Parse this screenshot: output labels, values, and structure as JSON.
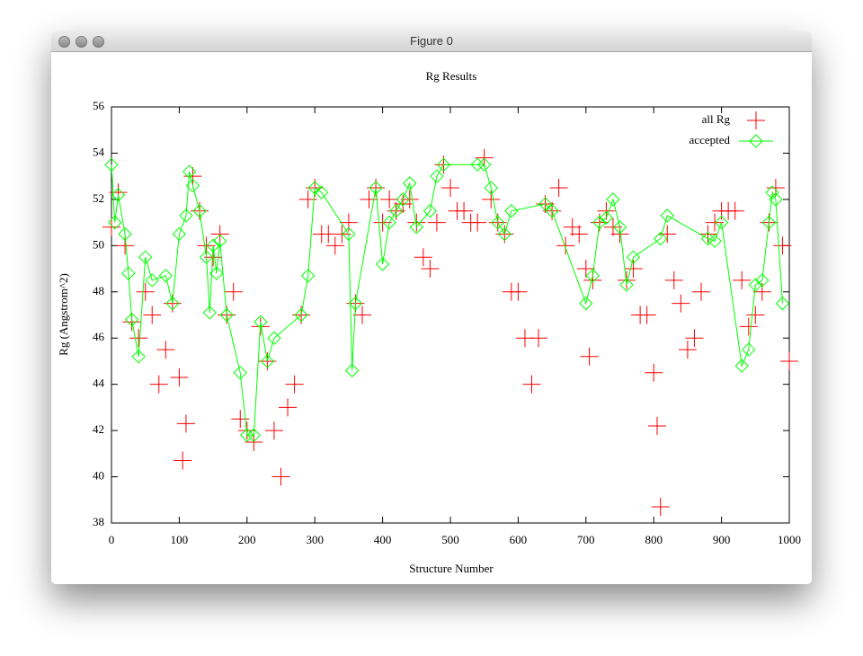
{
  "window": {
    "title": "Figure 0"
  },
  "chart_data": {
    "type": "scatter",
    "title": "Rg Results",
    "x_label": "Structure Number",
    "y_label": "Rg (Angstrom^2)",
    "xlim": [
      0,
      1000
    ],
    "ylim": [
      38,
      56
    ],
    "xticks": [
      0,
      100,
      200,
      300,
      400,
      500,
      600,
      700,
      800,
      900,
      1000
    ],
    "yticks": [
      38,
      40,
      42,
      44,
      46,
      48,
      50,
      52,
      54,
      56
    ],
    "legend": "upper right",
    "series": [
      {
        "name": "all Rg",
        "color": "#ff0000",
        "marker": "plus",
        "line": false,
        "x": [
          0,
          10,
          20,
          30,
          40,
          50,
          60,
          70,
          80,
          90,
          100,
          105,
          110,
          120,
          130,
          140,
          150,
          160,
          170,
          180,
          190,
          200,
          210,
          220,
          230,
          240,
          250,
          260,
          270,
          280,
          290,
          300,
          310,
          320,
          330,
          340,
          350,
          360,
          370,
          380,
          390,
          400,
          410,
          420,
          430,
          440,
          450,
          460,
          470,
          480,
          490,
          500,
          510,
          520,
          530,
          540,
          550,
          560,
          570,
          580,
          590,
          600,
          610,
          620,
          630,
          640,
          650,
          660,
          670,
          680,
          690,
          700,
          705,
          710,
          720,
          730,
          740,
          750,
          760,
          770,
          780,
          790,
          800,
          805,
          810,
          820,
          830,
          840,
          850,
          860,
          870,
          880,
          890,
          900,
          910,
          920,
          930,
          940,
          950,
          960,
          970,
          980,
          990,
          1000
        ],
        "values": [
          50.8,
          52.3,
          50,
          46.7,
          46,
          48,
          47,
          44,
          45.5,
          47.5,
          44.3,
          40.7,
          42.3,
          53,
          51.5,
          50,
          49.5,
          50.5,
          47,
          48,
          42.5,
          42,
          41.5,
          46.5,
          45,
          42,
          40,
          43,
          44,
          47,
          52,
          52.5,
          50.5,
          50.5,
          50,
          50.5,
          51,
          47.5,
          47,
          52,
          52.5,
          51,
          52,
          51.5,
          51.8,
          52,
          51,
          49.5,
          49,
          51,
          53.5,
          52.5,
          51.5,
          51.5,
          51,
          51,
          53.8,
          52,
          51,
          50.5,
          48,
          48,
          46,
          44,
          46,
          51.8,
          51.5,
          52.5,
          50,
          50.8,
          50.5,
          49,
          45.2,
          48.5,
          51,
          51.5,
          50.8,
          50.5,
          48.5,
          49,
          47,
          47,
          44.5,
          42.2,
          38.7,
          50.5,
          48.5,
          47.5,
          45.5,
          46,
          48,
          50.5,
          51,
          51.5,
          51.5,
          51.5,
          48.5,
          46.5,
          47,
          48,
          51,
          52.5,
          50,
          45
        ]
      },
      {
        "name": "accepted",
        "color": "#00ff00",
        "marker": "diamond",
        "line": true,
        "x": [
          0,
          5,
          10,
          20,
          25,
          30,
          40,
          50,
          60,
          80,
          90,
          100,
          110,
          115,
          120,
          130,
          140,
          145,
          150,
          155,
          160,
          170,
          190,
          200,
          210,
          220,
          230,
          240,
          280,
          290,
          300,
          310,
          350,
          355,
          360,
          390,
          400,
          410,
          420,
          430,
          440,
          450,
          470,
          480,
          490,
          540,
          550,
          560,
          570,
          580,
          590,
          640,
          650,
          700,
          710,
          720,
          730,
          740,
          750,
          760,
          770,
          810,
          820,
          880,
          890,
          900,
          930,
          940,
          950,
          960,
          970,
          975,
          980,
          990
        ],
        "values": [
          53.5,
          51,
          52.2,
          50.5,
          48.8,
          46.8,
          45.2,
          49.5,
          48.5,
          48.7,
          47.5,
          50.5,
          51.3,
          53.2,
          52.6,
          51.5,
          49.5,
          47.1,
          50,
          48.8,
          50.2,
          47,
          44.5,
          41.8,
          41.8,
          46.7,
          45,
          46,
          47,
          48.7,
          52.5,
          52.3,
          50.5,
          44.6,
          47.5,
          52.5,
          49.2,
          51,
          51.5,
          52,
          52.7,
          50.8,
          51.5,
          53,
          53.5,
          53.5,
          53.5,
          52.5,
          51,
          50.5,
          51.5,
          51.8,
          51.5,
          47.5,
          48.7,
          51,
          51.2,
          52,
          50.8,
          48.3,
          49.5,
          50.3,
          51.3,
          50.3,
          50.2,
          51,
          44.8,
          45.5,
          48.3,
          48.5,
          51,
          52.3,
          52,
          47.5
        ]
      }
    ]
  }
}
